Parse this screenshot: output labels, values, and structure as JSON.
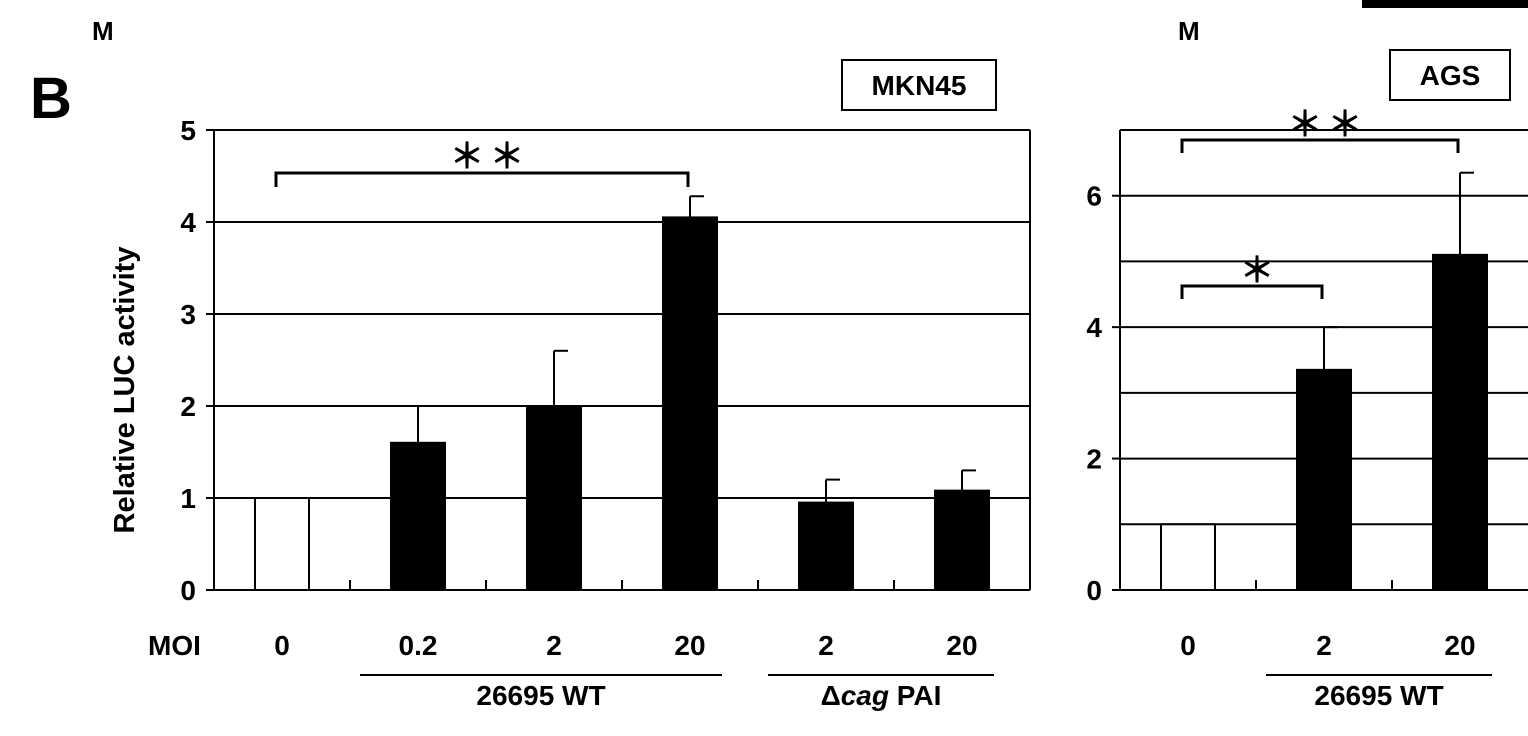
{
  "page": {
    "panel_letter": "B",
    "corner_marks": [
      "M",
      "M"
    ]
  },
  "chart_data": [
    {
      "type": "bar",
      "title": "MKN45",
      "ylabel": "Relative LUC activity",
      "ylim": [
        0,
        5
      ],
      "yticks": [
        "0",
        "1",
        "2",
        "3",
        "4",
        "5"
      ],
      "x_row_label": "MOI",
      "categories": [
        "0",
        "0.2",
        "2",
        "20",
        "2",
        "20"
      ],
      "values": [
        1.0,
        1.6,
        2.0,
        4.05,
        0.95,
        1.08
      ],
      "errors": [
        0,
        0.4,
        0.6,
        0.23,
        0.25,
        0.22
      ],
      "fill": [
        "white",
        "black",
        "black",
        "black",
        "black",
        "black"
      ],
      "groups": [
        {
          "label": "26695 WT",
          "from": 1,
          "to": 3
        },
        {
          "label_prefix": "Δ",
          "label_italic": "cag",
          "label_suffix": " PAI",
          "from": 4,
          "to": 5
        }
      ],
      "significance": [
        {
          "from": 0,
          "to": 3,
          "label": "＊＊"
        }
      ],
      "grid": true
    },
    {
      "type": "bar",
      "title": "AGS",
      "ylim": [
        0,
        7
      ],
      "yticks": [
        "0",
        "2",
        "4",
        "6"
      ],
      "categories": [
        "0",
        "2",
        "20"
      ],
      "values": [
        1.0,
        3.35,
        5.1
      ],
      "errors": [
        0,
        0.65,
        1.25
      ],
      "fill": [
        "white",
        "black",
        "black"
      ],
      "groups": [
        {
          "label": "26695 WT",
          "from": 1,
          "to": 2
        }
      ],
      "significance": [
        {
          "from": 0,
          "to": 1,
          "label": "＊"
        },
        {
          "from": 0,
          "to": 2,
          "label": "＊＊"
        }
      ],
      "grid": true
    }
  ]
}
